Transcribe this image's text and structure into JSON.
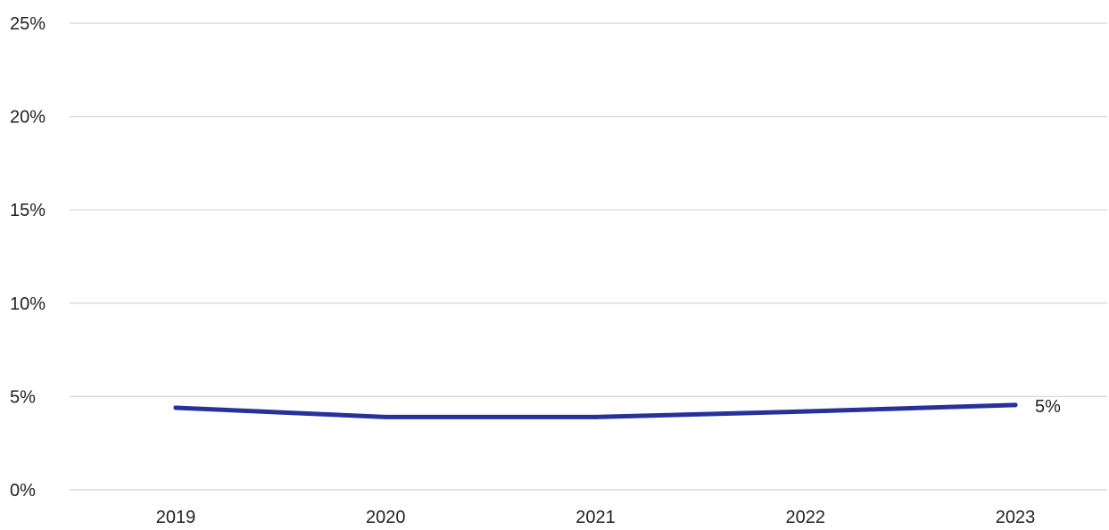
{
  "chart_data": {
    "type": "line",
    "title": "",
    "xlabel": "",
    "ylabel": "",
    "categories": [
      "2019",
      "2020",
      "2021",
      "2022",
      "2023"
    ],
    "series": [
      {
        "values": [
          4.4,
          3.9,
          3.9,
          4.2,
          4.55
        ],
        "color": "#26319a",
        "end_label": "5%"
      }
    ],
    "ylim": [
      0,
      25
    ],
    "y_ticks": [
      0,
      5,
      10,
      15,
      20,
      25
    ],
    "y_tick_labels": [
      "0%",
      "5%",
      "10%",
      "15%",
      "20%",
      "25%"
    ],
    "grid": "horizontal",
    "gridline_color": "#dcdcdc",
    "text_color": "#222222",
    "legend": "none"
  }
}
